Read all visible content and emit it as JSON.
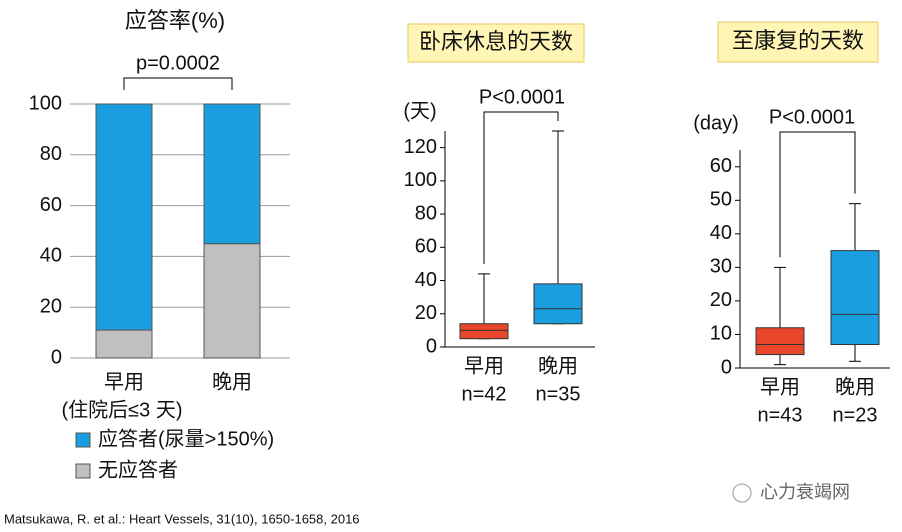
{
  "chart_data": [
    {
      "type": "bar",
      "stacked": true,
      "title": "应答率(%)",
      "annotation": "p=0.0002",
      "categories": [
        "早用",
        "晚用"
      ],
      "category_note": "(住院后≤3 天)",
      "series": [
        {
          "name": "应答者(尿量>150%)",
          "color": "#1a9ee0",
          "values": [
            89,
            55
          ]
        },
        {
          "name": "无应答者",
          "color": "#c0c0c0",
          "values": [
            11,
            45
          ]
        }
      ],
      "ylim": [
        0,
        100
      ],
      "yticks": [
        0,
        20,
        40,
        60,
        80,
        100
      ],
      "grid": true
    },
    {
      "type": "box",
      "title": "卧床休息的天数",
      "ylabel": "(天)",
      "annotation": "P<0.0001",
      "categories": [
        "早用",
        "晚用"
      ],
      "n_labels": [
        "n=42",
        "n=35"
      ],
      "colors": [
        "#e8472b",
        "#1a9ee0"
      ],
      "min": [
        5,
        14
      ],
      "q1": [
        5,
        14
      ],
      "median": [
        10,
        23
      ],
      "q3": [
        14,
        38
      ],
      "max": [
        44,
        130
      ],
      "ylim": [
        0,
        130
      ],
      "yticks": [
        0,
        20,
        40,
        60,
        80,
        100,
        120
      ]
    },
    {
      "type": "box",
      "title": "至康复的天数",
      "ylabel": "(day)",
      "annotation": "P<0.0001",
      "categories": [
        "早用",
        "晚用"
      ],
      "n_labels": [
        "n=43",
        "n=23"
      ],
      "colors": [
        "#e8472b",
        "#1a9ee0"
      ],
      "min": [
        1,
        2
      ],
      "q1": [
        4,
        7
      ],
      "median": [
        7,
        16
      ],
      "q3": [
        12,
        35
      ],
      "max": [
        30,
        49
      ],
      "ylim": [
        0,
        65
      ],
      "yticks": [
        0,
        10,
        20,
        30,
        40,
        50,
        60
      ]
    }
  ],
  "source": "Matsukawa, R. et al.: Heart Vessels, 31(10), 1650-1658, 2016",
  "watermark": "心力衰竭网"
}
